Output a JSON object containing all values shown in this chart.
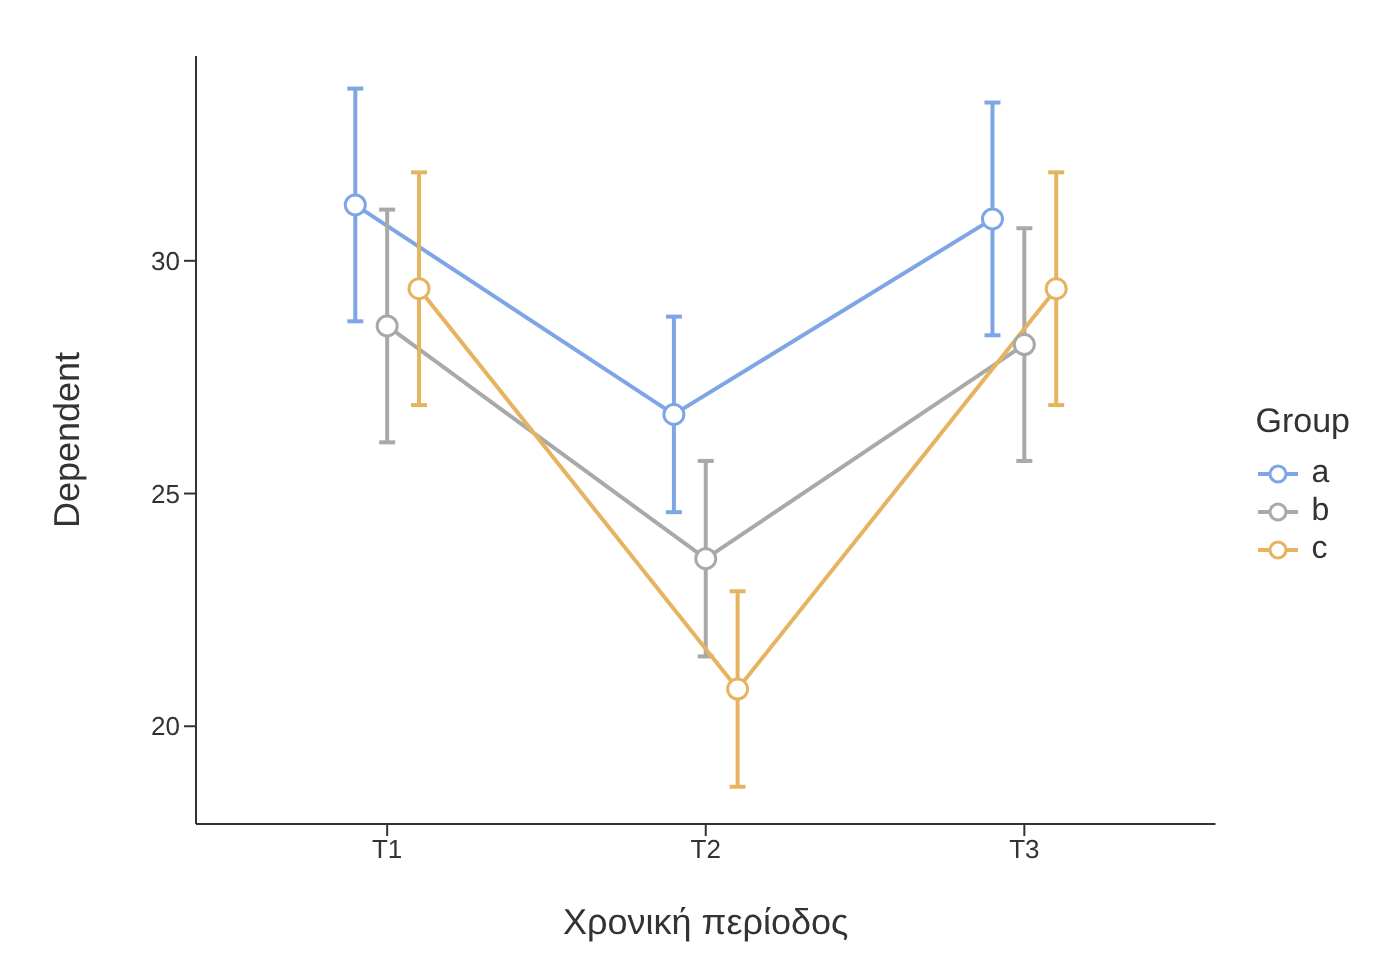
{
  "chart_data": {
    "type": "line",
    "xlabel": "Χρονική περίοδος",
    "ylabel": "Dependent",
    "legend_title": "Group",
    "categories": [
      "T1",
      "T2",
      "T3"
    ],
    "series": [
      {
        "name": "a",
        "color": "#7ea6e6",
        "values": [
          31.2,
          26.7,
          30.9
        ],
        "errors": [
          2.5,
          2.1,
          2.5
        ]
      },
      {
        "name": "b",
        "color": "#a9a9a9",
        "values": [
          28.6,
          23.6,
          28.2
        ],
        "errors": [
          2.5,
          2.1,
          2.5
        ]
      },
      {
        "name": "c",
        "color": "#e6b460",
        "values": [
          29.4,
          20.8,
          29.4
        ],
        "errors": [
          2.5,
          2.1,
          2.5
        ]
      }
    ],
    "ylim": [
      17.9,
      34.4
    ],
    "yticks": [
      20,
      25,
      30
    ],
    "legend": "right",
    "marker": "circle",
    "line_style": "solid"
  }
}
